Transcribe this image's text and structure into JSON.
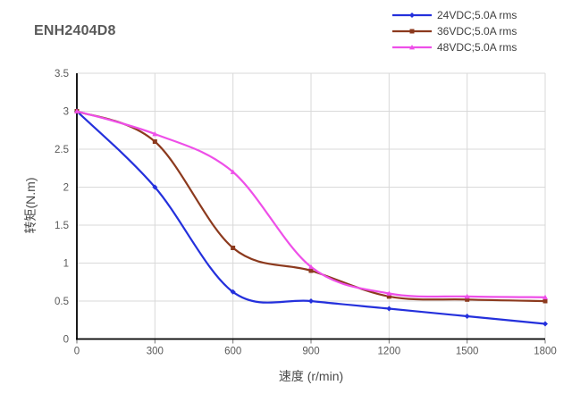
{
  "chart_data": {
    "type": "line",
    "title": "ENH2404D8",
    "x": [
      0,
      300,
      600,
      900,
      1200,
      1500,
      1800
    ],
    "series": [
      {
        "name": "24VDC;5.0A rms",
        "color": "#2430DC",
        "marker": "diamond",
        "values": [
          3.0,
          2.0,
          0.62,
          0.5,
          0.4,
          0.3,
          0.2
        ]
      },
      {
        "name": "36VDC;5.0A rms",
        "color": "#8C3A1E",
        "marker": "square",
        "values": [
          3.0,
          2.6,
          1.2,
          0.9,
          0.56,
          0.52,
          0.5
        ]
      },
      {
        "name": "48VDC;5.0A rms",
        "color": "#EE4FE8",
        "marker": "triangle",
        "values": [
          3.0,
          2.7,
          2.2,
          0.95,
          0.6,
          0.56,
          0.55
        ]
      }
    ],
    "xlabel": "速度 (r/min)",
    "ylabel": "转矩(N.m)",
    "xlim": [
      0,
      1800
    ],
    "ylim": [
      0,
      3.5
    ],
    "xticks": [
      0,
      300,
      600,
      900,
      1200,
      1500,
      1800
    ],
    "yticks": [
      0,
      0.5,
      1,
      1.5,
      2,
      2.5,
      3,
      3.5
    ],
    "grid": true,
    "legend_position": "top-right",
    "colors": {
      "grid": "#D9D9D9",
      "axis": "#000000",
      "tick_label": "#595959",
      "title": "#595959"
    }
  }
}
